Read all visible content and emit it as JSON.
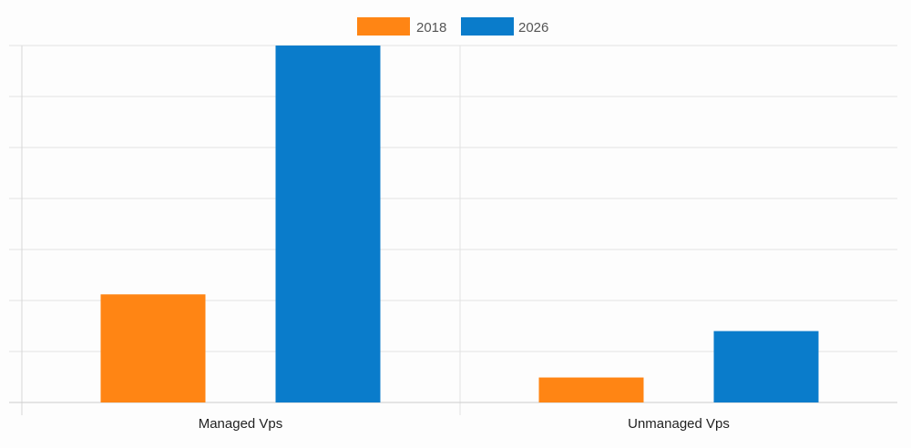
{
  "chart_data": {
    "type": "bar",
    "categories": [
      "Managed Vps",
      "Unmanaged Vps"
    ],
    "series": [
      {
        "name": "2018",
        "color": "#ff8514",
        "values": [
          21.2,
          4.9
        ]
      },
      {
        "name": "2026",
        "color": "#0a7ccb",
        "values": [
          70.0,
          14.0
        ]
      }
    ],
    "ylim": [
      0,
      70
    ],
    "y_gridlines": 7,
    "grid": true,
    "legend_position": "top-center",
    "title": "",
    "xlabel": "",
    "ylabel": ""
  }
}
